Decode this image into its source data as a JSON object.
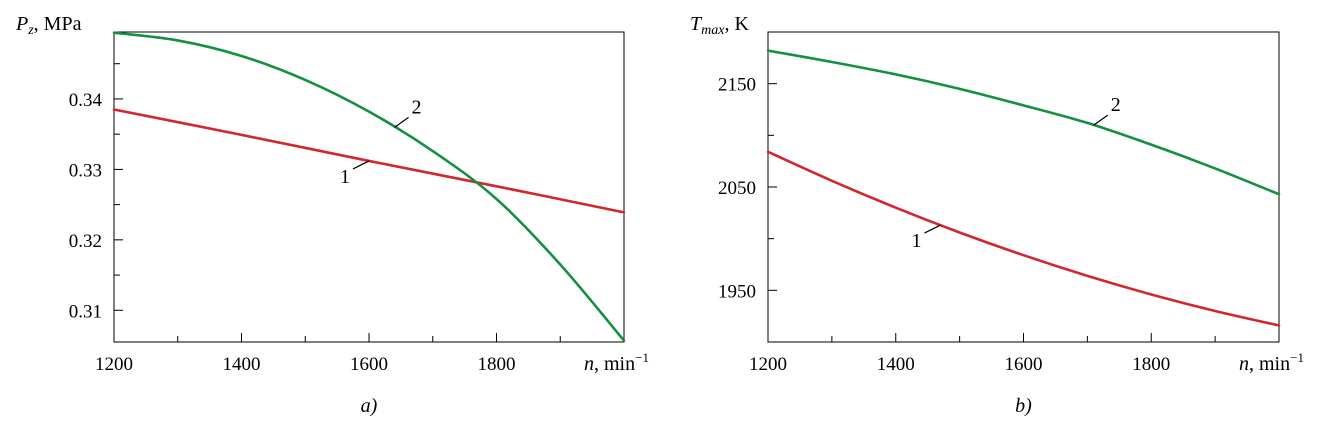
{
  "colors": {
    "series_1": "#d0282c",
    "series_2": "#159043"
  },
  "chart_data": [
    {
      "type": "line",
      "panel_label": "a)",
      "ylabel_sym": "P",
      "ylabel_sub": "z",
      "ylabel_unit": ", MPa",
      "xlabel_sym": "n",
      "xlabel_unit": ", min",
      "xlabel_exp": "−1",
      "xlim": [
        1200,
        2000
      ],
      "ylim": [
        0.3055,
        0.3495
      ],
      "x_major_ticks": [
        1200,
        1400,
        1600,
        1800
      ],
      "x_tick_labels": [
        "1200",
        "1400",
        "1600",
        "1800"
      ],
      "y_major_ticks": [
        0.31,
        0.32,
        0.33,
        0.34
      ],
      "y_tick_labels": [
        "0.31",
        "0.32",
        "0.33",
        "0.34"
      ],
      "series": [
        {
          "name": "1",
          "x": [
            1200,
            1400,
            1600,
            1800,
            2000
          ],
          "y": [
            0.3385,
            0.3349,
            0.3312,
            0.3276,
            0.3239
          ],
          "label_at": 1600
        },
        {
          "name": "2",
          "x": [
            1200,
            1300,
            1400,
            1500,
            1600,
            1700,
            1800,
            1900,
            2000
          ],
          "y": [
            0.3494,
            0.3483,
            0.3461,
            0.3427,
            0.3382,
            0.3326,
            0.3258,
            0.3165,
            0.3057
          ],
          "label_at": 1640
        }
      ]
    },
    {
      "type": "line",
      "panel_label": "b)",
      "ylabel_sym": "T",
      "ylabel_sub": "max",
      "ylabel_unit": ", K",
      "xlabel_sym": "n",
      "xlabel_unit": ", min",
      "xlabel_exp": "−1",
      "xlim": [
        1200,
        2000
      ],
      "ylim": [
        1900,
        2200
      ],
      "x_major_ticks": [
        1200,
        1400,
        1600,
        1800
      ],
      "x_tick_labels": [
        "1200",
        "1400",
        "1600",
        "1800"
      ],
      "y_major_ticks": [
        1950,
        2050,
        2150
      ],
      "y_tick_labels": [
        "1950",
        "2050",
        "2150"
      ],
      "series": [
        {
          "name": "1",
          "x": [
            1200,
            1300,
            1400,
            1500,
            1600,
            1700,
            1800,
            1900,
            2000
          ],
          "y": [
            2084,
            2056,
            2030,
            2006,
            1984,
            1964,
            1946,
            1930,
            1916
          ],
          "label_at": 1470
        },
        {
          "name": "2",
          "x": [
            1200,
            1300,
            1400,
            1500,
            1600,
            1700,
            1800,
            1900,
            2000
          ],
          "y": [
            2182,
            2171,
            2159,
            2145,
            2129,
            2112,
            2091,
            2068,
            2043
          ],
          "label_at": 1710
        }
      ]
    }
  ]
}
